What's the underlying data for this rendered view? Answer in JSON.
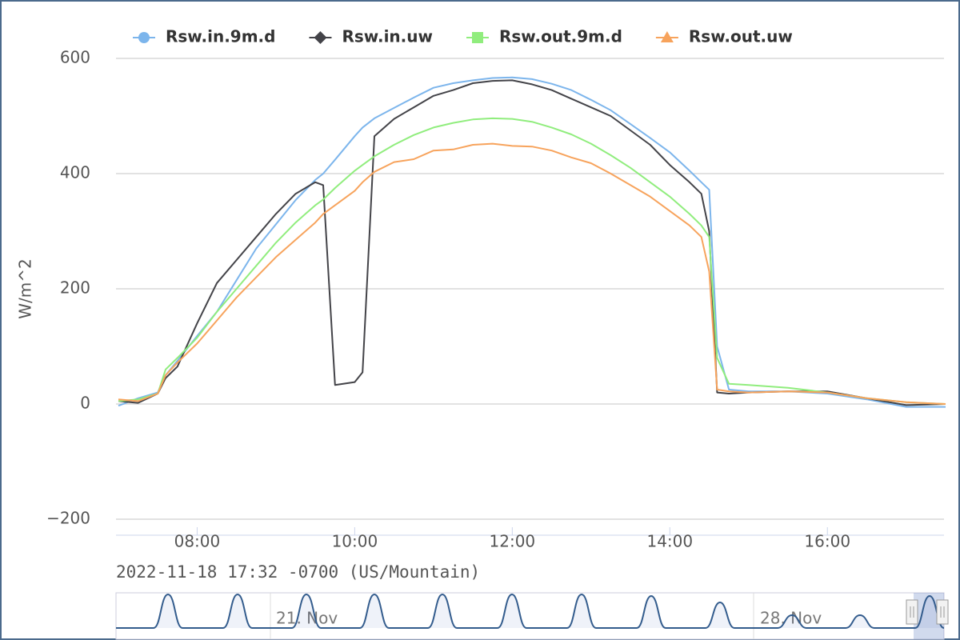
{
  "chart_data": {
    "type": "line",
    "y_axis_label": "W/m^2",
    "caption": "2022-11-18 17:32 -0700 (US/Mountain)",
    "x": [
      7,
      7.25,
      7.5,
      7.6,
      7.75,
      8,
      8.25,
      8.5,
      8.75,
      9,
      9.25,
      9.5,
      9.6,
      9.75,
      10,
      10.1,
      10.25,
      10.5,
      10.75,
      11,
      11.25,
      11.5,
      11.75,
      12,
      12.25,
      12.5,
      12.75,
      13,
      13.25,
      13.5,
      13.75,
      14,
      14.25,
      14.4,
      14.5,
      14.6,
      14.75,
      15,
      15.5,
      16,
      16.5,
      17,
      17.5
    ],
    "xlim": [
      6.97,
      17.48
    ],
    "xticks": [
      {
        "value": 8,
        "label": "08:00"
      },
      {
        "value": 10,
        "label": "10:00"
      },
      {
        "value": 12,
        "label": "12:00"
      },
      {
        "value": 14,
        "label": "14:00"
      },
      {
        "value": 16,
        "label": "16:00"
      }
    ],
    "ylim": [
      -200,
      600
    ],
    "yticks": [
      {
        "value": -200,
        "label": "−200"
      },
      0,
      200,
      400,
      600
    ],
    "grid": true,
    "legend": "top",
    "series": [
      {
        "name": "Rsw.in.9m.d",
        "color": "#7cb5ec",
        "marker": "circle",
        "values": [
          -3,
          10,
          20,
          50,
          75,
          118,
          160,
          215,
          270,
          312,
          354,
          389,
          400,
          424,
          465,
          480,
          496,
          514,
          532,
          549,
          557,
          562,
          566,
          567,
          564,
          556,
          545,
          528,
          510,
          486,
          462,
          437,
          405,
          385,
          372,
          100,
          25,
          22,
          22,
          18,
          8,
          -5,
          -5
        ]
      },
      {
        "name": "Rsw.in.uw",
        "color": "#434348",
        "marker": "diamond",
        "values": [
          5,
          2,
          18,
          45,
          65,
          140,
          210,
          250,
          290,
          330,
          365,
          385,
          380,
          33,
          38,
          55,
          465,
          495,
          515,
          535,
          545,
          557,
          561,
          562,
          555,
          545,
          530,
          515,
          500,
          475,
          450,
          415,
          385,
          365,
          300,
          20,
          18,
          20,
          22,
          22,
          10,
          -2,
          0
        ]
      },
      {
        "name": "Rsw.out.9m.d",
        "color": "#90ed7d",
        "marker": "square",
        "values": [
          5,
          8,
          18,
          60,
          80,
          115,
          160,
          200,
          240,
          280,
          315,
          345,
          355,
          375,
          405,
          415,
          430,
          450,
          467,
          480,
          488,
          494,
          496,
          495,
          490,
          480,
          468,
          452,
          432,
          410,
          385,
          360,
          330,
          310,
          290,
          80,
          35,
          33,
          28,
          20,
          10,
          3,
          0
        ]
      },
      {
        "name": "Rsw.out.uw",
        "color": "#f7a35c",
        "marker": "triangle",
        "values": [
          8,
          5,
          18,
          50,
          72,
          105,
          145,
          185,
          220,
          255,
          285,
          315,
          330,
          345,
          370,
          385,
          403,
          420,
          425,
          440,
          442,
          450,
          452,
          448,
          447,
          440,
          428,
          418,
          400,
          380,
          360,
          335,
          310,
          290,
          230,
          25,
          22,
          20,
          22,
          20,
          10,
          3,
          0
        ]
      }
    ],
    "navigator": {
      "labels": [
        "21. Nov",
        "28. Nov"
      ]
    }
  }
}
